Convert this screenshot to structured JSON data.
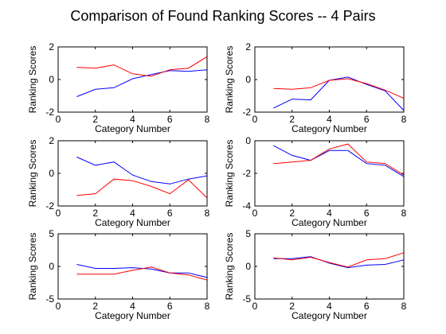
{
  "figure": {
    "title": "Comparison of Found Ranking Scores -- 4 Pairs"
  },
  "chart_data": [
    {
      "type": "line",
      "xlabel": "Category Number",
      "ylabel": "Ranking Scores",
      "xlim": [
        0,
        8
      ],
      "ylim": [
        -2,
        2
      ],
      "xticks": [
        0,
        2,
        4,
        6,
        8
      ],
      "yticks": [
        -2,
        0,
        2
      ],
      "x": [
        1,
        2,
        3,
        4,
        5,
        6,
        7,
        8
      ],
      "series": [
        {
          "color": "#0000ff",
          "values": [
            -1.05,
            -0.6,
            -0.5,
            0.05,
            0.3,
            0.55,
            0.5,
            0.6
          ]
        },
        {
          "color": "#ff0000",
          "values": [
            0.75,
            0.7,
            0.9,
            0.35,
            0.2,
            0.6,
            0.7,
            1.4
          ]
        }
      ]
    },
    {
      "type": "line",
      "xlabel": "Category Number",
      "ylabel": "Ranking Scores",
      "xlim": [
        0,
        8
      ],
      "ylim": [
        -2,
        2
      ],
      "xticks": [
        0,
        2,
        4,
        6,
        8
      ],
      "yticks": [
        -2,
        0,
        2
      ],
      "x": [
        1,
        2,
        3,
        4,
        5,
        6,
        7,
        8
      ],
      "series": [
        {
          "color": "#0000ff",
          "values": [
            -1.75,
            -1.2,
            -1.25,
            -0.05,
            0.15,
            -0.3,
            -0.7,
            -1.9
          ]
        },
        {
          "color": "#ff0000",
          "values": [
            -0.55,
            -0.6,
            -0.5,
            -0.05,
            0.05,
            -0.25,
            -0.65,
            -1.15
          ]
        }
      ]
    },
    {
      "type": "line",
      "xlabel": "Category Number",
      "ylabel": "Ranking Scores",
      "xlim": [
        0,
        8
      ],
      "ylim": [
        -2,
        2
      ],
      "xticks": [
        0,
        2,
        4,
        6,
        8
      ],
      "yticks": [
        -2,
        0,
        2
      ],
      "x": [
        1,
        2,
        3,
        4,
        5,
        6,
        7,
        8
      ],
      "series": [
        {
          "color": "#0000ff",
          "values": [
            1.0,
            0.5,
            0.7,
            -0.1,
            -0.5,
            -0.65,
            -0.35,
            -0.15
          ]
        },
        {
          "color": "#ff0000",
          "values": [
            -1.35,
            -1.25,
            -0.35,
            -0.45,
            -0.8,
            -1.25,
            -0.4,
            -1.5
          ]
        }
      ]
    },
    {
      "type": "line",
      "xlabel": "Category Number",
      "ylabel": "Ranking Scores",
      "xlim": [
        0,
        8
      ],
      "ylim": [
        -4,
        0
      ],
      "xticks": [
        0,
        2,
        4,
        6,
        8
      ],
      "yticks": [
        -4,
        -2,
        0
      ],
      "x": [
        1,
        2,
        3,
        4,
        5,
        6,
        7,
        8
      ],
      "series": [
        {
          "color": "#0000ff",
          "values": [
            -0.3,
            -0.9,
            -1.2,
            -0.6,
            -0.6,
            -1.4,
            -1.5,
            -2.2
          ]
        },
        {
          "color": "#ff0000",
          "values": [
            -1.4,
            -1.3,
            -1.2,
            -0.5,
            -0.2,
            -1.3,
            -1.4,
            -2.1
          ]
        }
      ]
    },
    {
      "type": "line",
      "xlabel": "Category Number",
      "ylabel": "Ranking Scores",
      "xlim": [
        0,
        8
      ],
      "ylim": [
        -5,
        5
      ],
      "xticks": [
        0,
        2,
        4,
        6,
        8
      ],
      "yticks": [
        -5,
        0,
        5
      ],
      "x": [
        1,
        2,
        3,
        4,
        5,
        6,
        7,
        8
      ],
      "series": [
        {
          "color": "#0000ff",
          "values": [
            0.3,
            -0.3,
            -0.3,
            -0.2,
            -0.4,
            -1.0,
            -1.0,
            -1.7
          ]
        },
        {
          "color": "#ff0000",
          "values": [
            -1.2,
            -1.2,
            -1.2,
            -0.6,
            -0.1,
            -1.0,
            -1.3,
            -2.1
          ]
        }
      ]
    },
    {
      "type": "line",
      "xlabel": "Category Number",
      "ylabel": "Ranking Scores",
      "xlim": [
        0,
        8
      ],
      "ylim": [
        -5,
        5
      ],
      "xticks": [
        0,
        2,
        4,
        6,
        8
      ],
      "yticks": [
        -5,
        0,
        5
      ],
      "x": [
        1,
        2,
        3,
        4,
        5,
        6,
        7,
        8
      ],
      "series": [
        {
          "color": "#0000ff",
          "values": [
            1.2,
            1.2,
            1.5,
            0.5,
            -0.2,
            0.2,
            0.3,
            1.0
          ]
        },
        {
          "color": "#ff0000",
          "values": [
            1.3,
            1.0,
            1.4,
            0.6,
            -0.1,
            1.0,
            1.2,
            2.1
          ]
        }
      ]
    }
  ]
}
